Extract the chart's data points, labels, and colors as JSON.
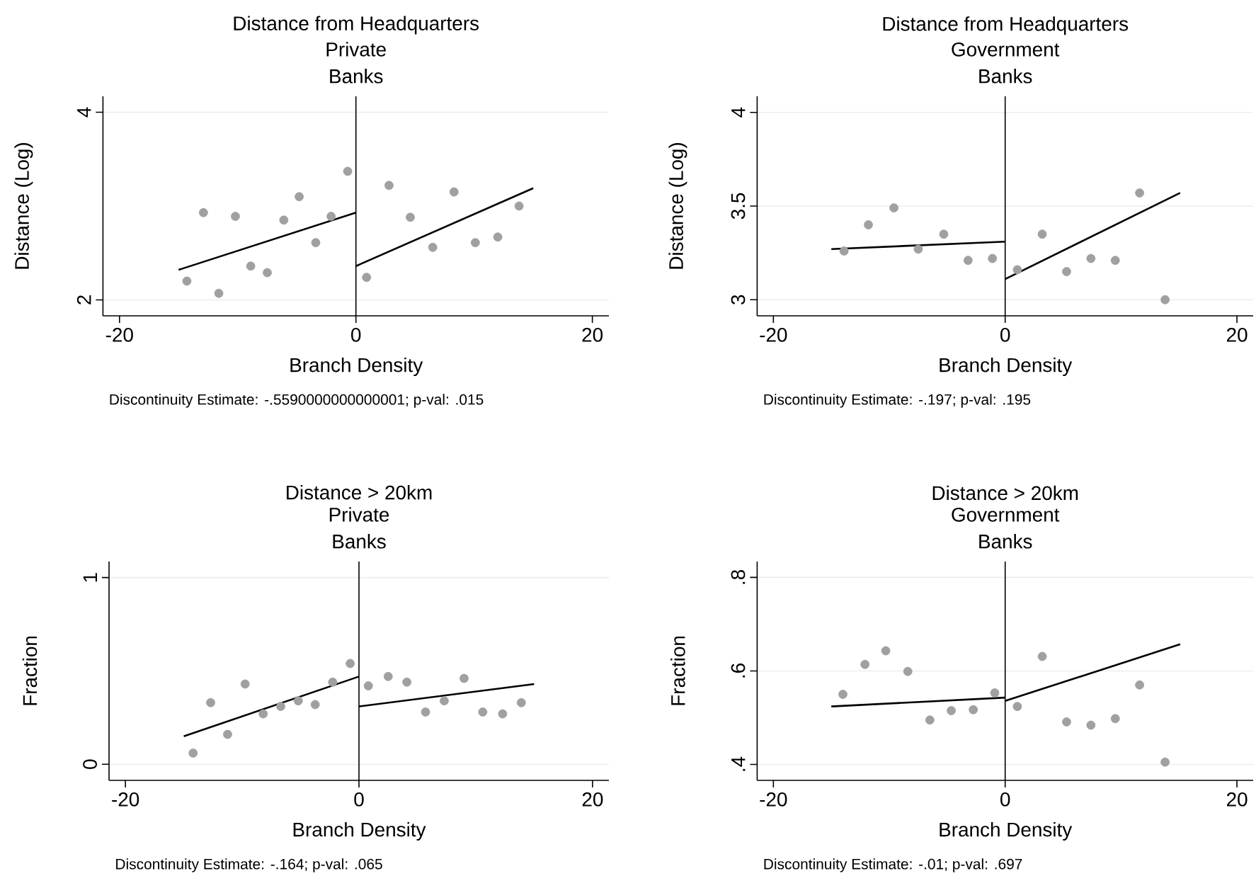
{
  "chart_data": [
    {
      "type": "scatter",
      "title": "Distance from Headquarters",
      "subtitle": "Private Banks",
      "xlabel": "Branch Density",
      "ylabel": "Distance (Log)",
      "annotations": [
        "Discontinuity Estimate: -.5590000000000001; p-val: .015"
      ],
      "xlim": [
        -21.4,
        21.4
      ],
      "xticks": [
        -20,
        0,
        20
      ],
      "ylim": [
        1.83,
        4.17
      ],
      "yticks": [
        2,
        4
      ],
      "grid": "y",
      "ref_lines": [
        {
          "axis": "x",
          "value": 0,
          "color": "#000000"
        }
      ],
      "series": [
        {
          "color": "#a0a0a0",
          "marker": "circle",
          "x": [
            -14.3,
            -12.9,
            -11.6,
            -10.2,
            -8.9,
            -7.5,
            -6.1,
            -4.8,
            -3.4,
            -2.1,
            -0.7,
            0.9,
            2.8,
            4.6,
            6.5,
            8.3,
            10.1,
            12.0,
            13.8
          ],
          "values": [
            2.2,
            2.93,
            2.07,
            2.89,
            2.36,
            2.29,
            2.85,
            3.1,
            2.61,
            2.89,
            3.37,
            2.24,
            3.22,
            2.88,
            2.56,
            3.15,
            2.61,
            2.67,
            3.0
          ]
        },
        {
          "type": "line",
          "color": "#000000",
          "marker": "none",
          "x": [
            -15,
            0
          ],
          "values": [
            2.32,
            2.93
          ]
        },
        {
          "type": "line",
          "color": "#000000",
          "marker": "none",
          "x": [
            0,
            15
          ],
          "values": [
            2.36,
            3.19
          ]
        }
      ]
    },
    {
      "type": "scatter",
      "title": "Distance from Headquarters",
      "subtitle": "Government Banks",
      "xlabel": "Branch Density",
      "ylabel": "Distance (Log)",
      "annotations": [
        "Discontinuity Estimate: -.197; p-val: .195"
      ],
      "xlim": [
        -21.4,
        21.4
      ],
      "xticks": [
        -20,
        0,
        20
      ],
      "ylim": [
        2.914,
        4.086
      ],
      "yticks": [
        3,
        3.5,
        4
      ],
      "grid": "y",
      "ref_lines": [
        {
          "axis": "x",
          "value": 0,
          "color": "#000000"
        }
      ],
      "series": [
        {
          "color": "#a0a0a0",
          "marker": "circle",
          "x": [
            -13.9,
            -11.8,
            -9.6,
            -7.5,
            -5.3,
            -3.2,
            -1.1,
            1.05,
            3.2,
            5.3,
            7.4,
            9.5,
            11.6,
            13.8
          ],
          "values": [
            3.26,
            3.4,
            3.49,
            3.27,
            3.35,
            3.21,
            3.22,
            3.16,
            3.35,
            3.15,
            3.22,
            3.21,
            3.57,
            3.0
          ]
        },
        {
          "type": "line",
          "color": "#000000",
          "marker": "none",
          "x": [
            -15,
            0
          ],
          "values": [
            3.27,
            3.31
          ]
        },
        {
          "type": "line",
          "color": "#000000",
          "marker": "none",
          "x": [
            0,
            15.1
          ],
          "values": [
            3.11,
            3.57
          ]
        }
      ]
    },
    {
      "type": "scatter",
      "title": "Distance > 20km",
      "subtitle": "Private Banks",
      "xlabel": "Branch Density",
      "ylabel": "Fraction",
      "annotations": [
        "Discontinuity Estimate: -.164; p-val: .065"
      ],
      "xlim": [
        -21.4,
        21.4
      ],
      "xticks": [
        -20,
        0,
        20
      ],
      "ylim": [
        -0.086,
        1.086
      ],
      "yticks": [
        0,
        1
      ],
      "grid": "y",
      "ref_lines": [
        {
          "axis": "x",
          "value": 0,
          "color": "#000000"
        }
      ],
      "series": [
        {
          "color": "#a0a0a0",
          "marker": "circle",
          "x": [
            -14.2,
            -12.7,
            -11.25,
            -9.75,
            -8.2,
            -6.7,
            -5.2,
            -3.75,
            -2.25,
            -0.75,
            0.8,
            2.5,
            4.1,
            5.7,
            7.3,
            9.0,
            10.6,
            12.3,
            13.9
          ],
          "values": [
            0.06,
            0.33,
            0.16,
            0.43,
            0.27,
            0.31,
            0.34,
            0.32,
            0.44,
            0.54,
            0.42,
            0.47,
            0.44,
            0.28,
            0.34,
            0.46,
            0.28,
            0.27,
            0.33
          ]
        },
        {
          "type": "line",
          "color": "#000000",
          "marker": "none",
          "x": [
            -15,
            0
          ],
          "values": [
            0.15,
            0.47
          ]
        },
        {
          "type": "line",
          "color": "#000000",
          "marker": "none",
          "x": [
            0,
            15
          ],
          "values": [
            0.31,
            0.43
          ]
        }
      ]
    },
    {
      "type": "scatter",
      "title": "Distance > 20km",
      "subtitle": "Government Banks",
      "xlabel": "Branch Density",
      "ylabel": "Fraction",
      "annotations": [
        "Discontinuity Estimate: -.01; p-val: .697"
      ],
      "xlim": [
        -21.4,
        21.4
      ],
      "xticks": [
        -20,
        0,
        20
      ],
      "ylim": [
        0.366,
        0.834
      ],
      "yticks": [
        {
          "value": 0.4,
          "label": ".4"
        },
        {
          "value": 0.6,
          "label": ".6"
        },
        {
          "value": 0.8,
          "label": ".8"
        }
      ],
      "grid": "y",
      "ref_lines": [
        {
          "axis": "x",
          "value": 0,
          "color": "#000000"
        }
      ],
      "series": [
        {
          "color": "#a0a0a0",
          "marker": "circle",
          "x": [
            -14.0,
            -12.1,
            -10.3,
            -8.4,
            -6.5,
            -4.65,
            -2.75,
            -0.9,
            1.05,
            3.2,
            5.3,
            7.4,
            9.5,
            11.6,
            13.8
          ],
          "values": [
            0.55,
            0.614,
            0.643,
            0.599,
            0.495,
            0.515,
            0.517,
            0.553,
            0.524,
            0.631,
            0.491,
            0.484,
            0.498,
            0.57,
            0.405
          ]
        },
        {
          "type": "line",
          "color": "#000000",
          "marker": "none",
          "x": [
            -15,
            0
          ],
          "values": [
            0.524,
            0.543
          ]
        },
        {
          "type": "line",
          "color": "#000000",
          "marker": "none",
          "x": [
            0,
            15.1
          ],
          "values": [
            0.536,
            0.657
          ]
        }
      ]
    }
  ]
}
